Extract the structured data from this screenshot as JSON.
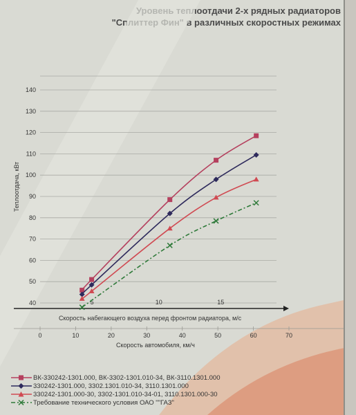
{
  "title_lines": [
    "Уровень теплоотдачи 2-х рядных радиаторов",
    "\"Сплиттер Фин\" в различных скоростных режимах"
  ],
  "chart_data": {
    "type": "line",
    "title": "Уровень теплоотдачи 2-х рядных радиаторов \"Сплиттер Фин\" в различных скоростных режимах",
    "ylabel": "Теплоотдача, кВт",
    "xlabel": "Скорость автомобиля, км/ч",
    "xlabel2": "Скорость набегающего воздуха перед фронтом радиатора, м/с",
    "xlim": [
      0,
      70
    ],
    "ylim": [
      30,
      140
    ],
    "x_ticks": [
      0,
      10,
      20,
      30,
      40,
      50,
      60,
      70
    ],
    "y_ticks": [
      40,
      50,
      60,
      70,
      80,
      90,
      100,
      110,
      120,
      130,
      140
    ],
    "x2_ticks": [
      {
        "label": "5",
        "x": 14.6
      },
      {
        "label": "10",
        "x": 33.4
      },
      {
        "label": "15",
        "x": 50.8
      }
    ],
    "grid": true,
    "legend_position": "bottom",
    "series": [
      {
        "name": "ВК-330242-1301.000, ВК-3302-1301.010-34, ВК-3110.1301.000",
        "color": "#b5405e",
        "marker": "square",
        "dash": "",
        "x": [
          11.8,
          14.5,
          36.5,
          49.5,
          60.8
        ],
        "y": [
          46,
          51,
          88.5,
          107,
          118.5
        ]
      },
      {
        "name": "330242-1301.000, 3302.1301.010-34, 3110.1301.000",
        "color": "#2e2a5c",
        "marker": "diamond",
        "dash": "",
        "x": [
          11.8,
          14.5,
          36.5,
          49.5,
          60.8
        ],
        "y": [
          44,
          48.5,
          82,
          98,
          109.5
        ]
      },
      {
        "name": "330242-1301.000-30, 3302-1301.010-34-01, 3110.1301.000-30",
        "color": "#d04a52",
        "marker": "triangle",
        "dash": "",
        "x": [
          11.8,
          14.5,
          36.5,
          49.5,
          60.8
        ],
        "y": [
          42,
          45.5,
          75,
          89.5,
          98
        ]
      },
      {
        "name": "Требование технического условия ОАО \"\"ГАЗ\"",
        "color": "#2f7a3a",
        "marker": "x",
        "dash": "6,3,2,3",
        "x": [
          11.8,
          36.5,
          49.5,
          60.8
        ],
        "y": [
          38,
          67,
          78.5,
          87
        ]
      }
    ]
  }
}
